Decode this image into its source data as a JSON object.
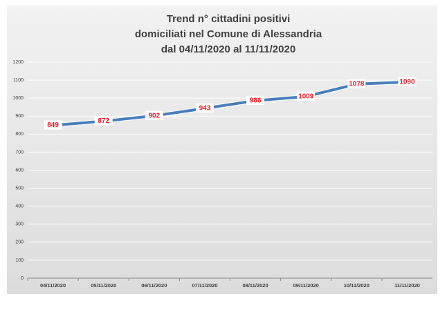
{
  "chart_data": {
    "type": "line",
    "title": [
      "Trend n° cittadini positivi",
      "domiciliati nel Comune di Alessandria",
      "dal 04/11/2020 al 11/11/2020"
    ],
    "categories": [
      "04/11/2020",
      "05/11/2020",
      "06/11/2020",
      "07/11/2020",
      "08/11/2020",
      "09/11/2020",
      "10/11/2020",
      "11/11/2020"
    ],
    "values": [
      849,
      872,
      902,
      943,
      986,
      1009,
      1078,
      1090
    ],
    "color": "#4a7ebb",
    "ylim": [
      0,
      1200
    ],
    "yticks": [
      0,
      100,
      200,
      300,
      400,
      500,
      600,
      700,
      800,
      900,
      1000,
      1100,
      1200
    ],
    "grid": true
  }
}
